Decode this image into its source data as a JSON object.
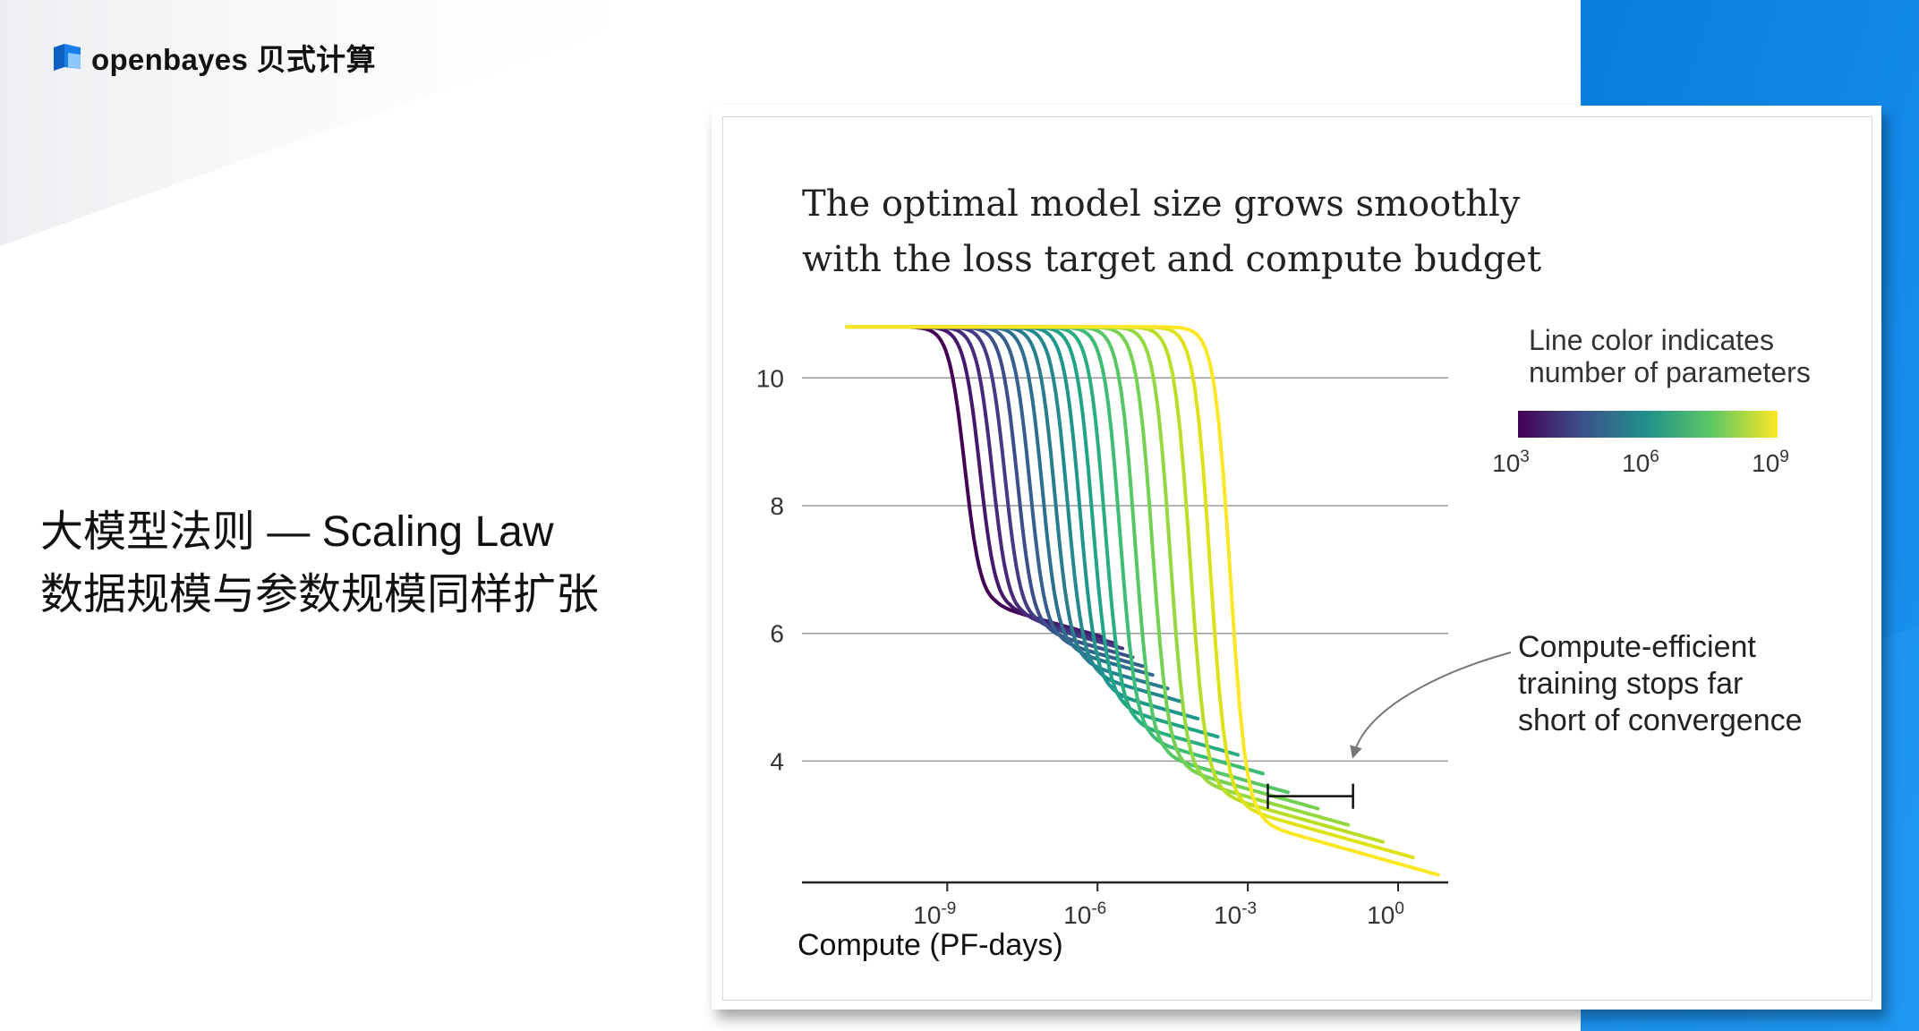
{
  "brand": {
    "name": "openbayes 贝式计算",
    "colors": {
      "logo_blue": "#1a7fe8",
      "logo_dark": "#0d5fc2",
      "accent_blue": "#0a7de0"
    }
  },
  "headline": {
    "line1": "大模型法则 — Scaling Law",
    "line2": "数据规模与参数规模同样扩张"
  },
  "chart_data": {
    "type": "line",
    "title_lines": [
      "The optimal model size grows smoothly",
      "with the loss target and compute budget"
    ],
    "xlabel": "Compute (PF-days)",
    "ylabel": "",
    "x_scale": "log",
    "xlim_log10": [
      -11.9,
      1.0
    ],
    "ylim": [
      2.1,
      11.7
    ],
    "x_ticks": [
      {
        "base": "10",
        "exp": "-9",
        "log10": -9
      },
      {
        "base": "10",
        "exp": "-6",
        "log10": -6
      },
      {
        "base": "10",
        "exp": "-3",
        "log10": -3
      },
      {
        "base": "10",
        "exp": "0",
        "log10": 0
      }
    ],
    "y_ticks": [
      {
        "label": "10",
        "value": 10
      },
      {
        "label": "8",
        "value": 8
      },
      {
        "label": "6",
        "value": 6
      },
      {
        "label": "4",
        "value": 4
      }
    ],
    "grid": {
      "horizontal": true,
      "vertical": false
    },
    "colorbar": {
      "title_lines": [
        "Line color indicates",
        "number of parameters"
      ],
      "ticks": [
        {
          "base": "10",
          "exp": "3"
        },
        {
          "base": "10",
          "exp": "6"
        },
        {
          "base": "10",
          "exp": "9"
        }
      ],
      "colormap": "viridis",
      "stops": [
        "#440154",
        "#3b528b",
        "#21918c",
        "#5ec962",
        "#fde725"
      ],
      "placement": "top-right"
    },
    "annotation": {
      "text_lines": [
        "Compute-efficient",
        "training stops far",
        "short of convergence"
      ],
      "bracket_log10": [
        -2.6,
        -0.9
      ],
      "bracket_y": 3.45
    },
    "curve_params": {
      "start_log10": -11.0,
      "initial_loss": 10.8
    },
    "series": [
      {
        "color": "#440154",
        "drop_log10": -8.65,
        "plateau": 6.42,
        "end_log10": -6.15
      },
      {
        "color": "#46186b",
        "drop_log10": -8.35,
        "plateau": 6.35,
        "end_log10": -5.9
      },
      {
        "color": "#472a7a",
        "drop_log10": -8.1,
        "plateau": 6.25,
        "end_log10": -5.7
      },
      {
        "color": "#433b84",
        "drop_log10": -7.85,
        "plateau": 6.15,
        "end_log10": -5.5
      },
      {
        "color": "#3d4e8a",
        "drop_log10": -7.6,
        "plateau": 6.0,
        "end_log10": -5.3
      },
      {
        "color": "#355f8d",
        "drop_log10": -7.35,
        "plateau": 5.85,
        "end_log10": -5.1
      },
      {
        "color": "#2e6e8e",
        "drop_log10": -7.1,
        "plateau": 5.7,
        "end_log10": -4.9
      },
      {
        "color": "#297b8e",
        "drop_log10": -6.85,
        "plateau": 5.5,
        "end_log10": -4.6
      },
      {
        "color": "#23898e",
        "drop_log10": -6.6,
        "plateau": 5.3,
        "end_log10": -4.3
      },
      {
        "color": "#1f968b",
        "drop_log10": -6.35,
        "plateau": 5.05,
        "end_log10": -4.0
      },
      {
        "color": "#20a386",
        "drop_log10": -6.1,
        "plateau": 4.8,
        "end_log10": -3.6
      },
      {
        "color": "#29af7f",
        "drop_log10": -5.85,
        "plateau": 4.55,
        "end_log10": -3.2
      },
      {
        "color": "#3cbc75",
        "drop_log10": -5.55,
        "plateau": 4.3,
        "end_log10": -2.7
      },
      {
        "color": "#56c667",
        "drop_log10": -5.25,
        "plateau": 4.05,
        "end_log10": -2.2
      },
      {
        "color": "#75d054",
        "drop_log10": -4.9,
        "plateau": 3.85,
        "end_log10": -1.6
      },
      {
        "color": "#95d840",
        "drop_log10": -4.55,
        "plateau": 3.65,
        "end_log10": -1.0
      },
      {
        "color": "#bade28",
        "drop_log10": -4.15,
        "plateau": 3.45,
        "end_log10": -0.3
      },
      {
        "color": "#dde318",
        "drop_log10": -3.75,
        "plateau": 3.25,
        "end_log10": 0.3
      },
      {
        "color": "#fde725",
        "drop_log10": -3.35,
        "plateau": 3.0,
        "end_log10": 0.8
      }
    ]
  }
}
